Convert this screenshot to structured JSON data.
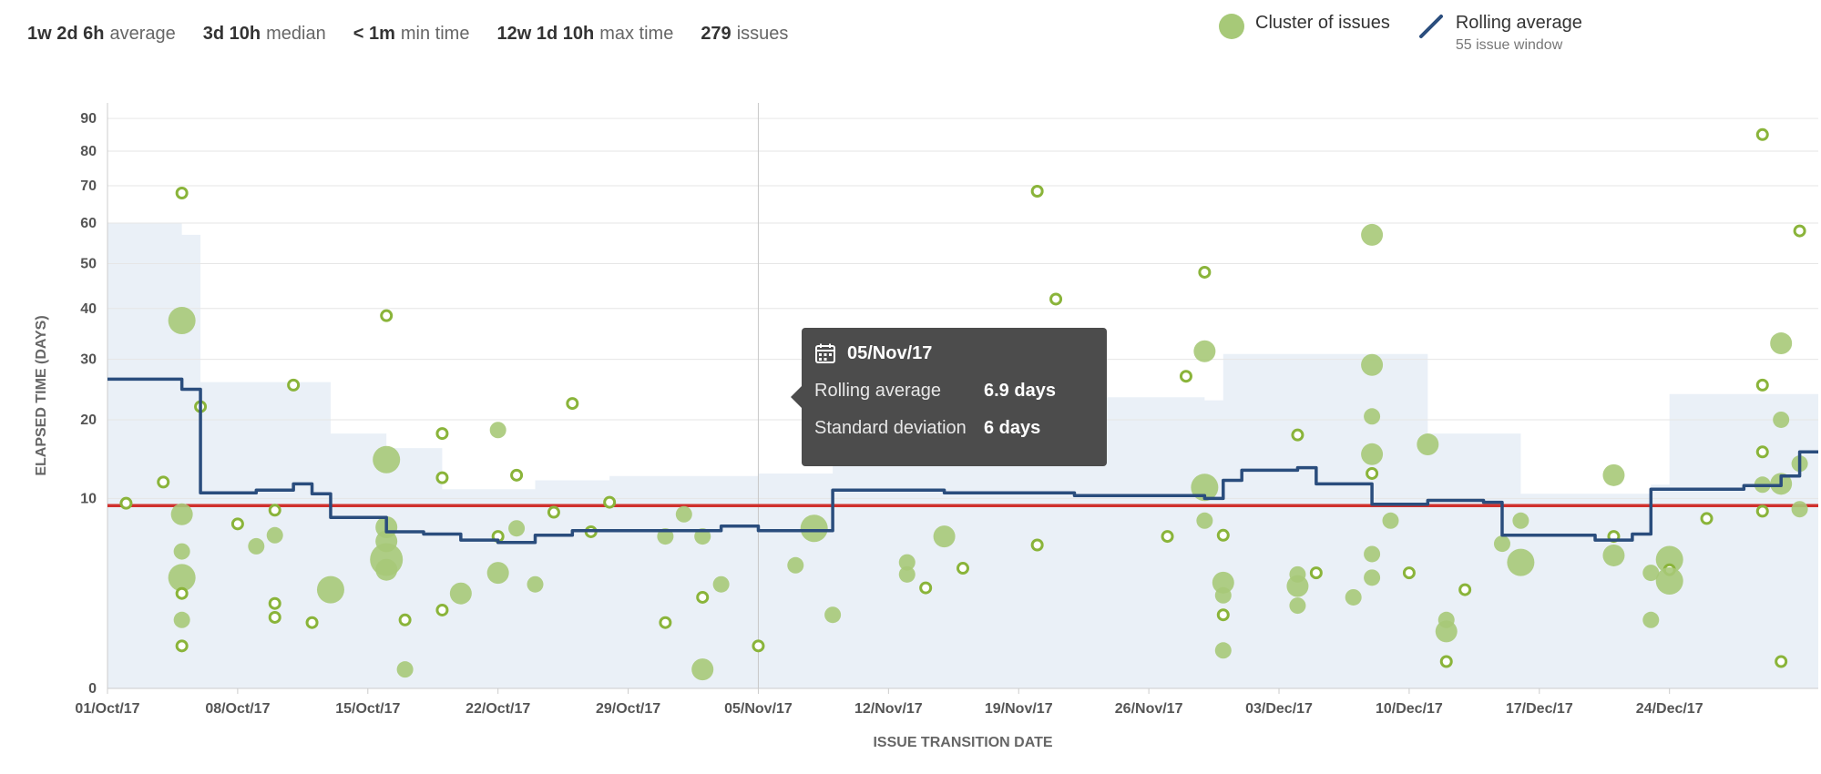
{
  "stats": [
    {
      "value": "1w 2d 6h",
      "label": "average"
    },
    {
      "value": "3d 10h",
      "label": "median"
    },
    {
      "value": "< 1m",
      "label": "min time"
    },
    {
      "value": "12w 1d 10h",
      "label": "max time"
    },
    {
      "value": "279",
      "label": "issues"
    }
  ],
  "legend": {
    "cluster_label": "Cluster of issues",
    "rolling_label": "Rolling average",
    "rolling_sub": "55 issue window"
  },
  "tooltip": {
    "date": "05/Nov/17",
    "rolling_label": "Rolling average",
    "rolling_value": "6.9 days",
    "stddev_label": "Standard deviation",
    "stddev_value": "6 days",
    "icon": "calendar-icon"
  },
  "colors": {
    "cluster": "#a7c978",
    "issue_ring": "#8ab43a",
    "rolling": "#2a4d7d",
    "average": "#d0312d",
    "band": "#eaf0f7"
  },
  "chart_data": {
    "type": "scatter",
    "xlabel": "ISSUE TRANSITION DATE",
    "ylabel": "ELAPSED TIME (DAYS)",
    "y_scale": "sqrt",
    "x_ticks": [
      "01/Oct/17",
      "08/Oct/17",
      "15/Oct/17",
      "22/Oct/17",
      "29/Oct/17",
      "05/Nov/17",
      "12/Nov/17",
      "19/Nov/17",
      "26/Nov/17",
      "03/Dec/17",
      "10/Dec/17",
      "17/Dec/17",
      "24/Dec/17"
    ],
    "y_ticks": [
      0,
      10,
      20,
      30,
      40,
      50,
      60,
      70,
      80,
      90
    ],
    "xlim": [
      "2017-10-01",
      "2017-12-31"
    ],
    "ylim": [
      0,
      95
    ],
    "grid": true,
    "average_days": 9.26,
    "hover_date": "2017-11-05",
    "issues": [
      {
        "date": "2017-10-02",
        "days": 9.5,
        "cluster": false
      },
      {
        "date": "2017-10-04",
        "days": 11.8,
        "cluster": false
      },
      {
        "date": "2017-10-05",
        "days": 37.5,
        "cluster": true,
        "size": "l"
      },
      {
        "date": "2017-10-05",
        "days": 68,
        "cluster": false
      },
      {
        "date": "2017-10-05",
        "days": 8.4,
        "cluster": true,
        "size": "m"
      },
      {
        "date": "2017-10-06",
        "days": 22,
        "cluster": false
      },
      {
        "date": "2017-10-05",
        "days": 5.2,
        "cluster": true,
        "size": "s"
      },
      {
        "date": "2017-10-05",
        "days": 3.4,
        "cluster": true,
        "size": "l"
      },
      {
        "date": "2017-10-05",
        "days": 2.5,
        "cluster": false
      },
      {
        "date": "2017-10-05",
        "days": 1.3,
        "cluster": true,
        "size": "s"
      },
      {
        "date": "2017-10-05",
        "days": 0.5,
        "cluster": false
      },
      {
        "date": "2017-10-08",
        "days": 7.5,
        "cluster": false
      },
      {
        "date": "2017-10-09",
        "days": 5.6,
        "cluster": true,
        "size": "s"
      },
      {
        "date": "2017-10-10",
        "days": 8.8,
        "cluster": false
      },
      {
        "date": "2017-10-10",
        "days": 6.5,
        "cluster": true,
        "size": "s"
      },
      {
        "date": "2017-10-10",
        "days": 2.0,
        "cluster": false
      },
      {
        "date": "2017-10-10",
        "days": 1.4,
        "cluster": false
      },
      {
        "date": "2017-10-11",
        "days": 25.5,
        "cluster": false
      },
      {
        "date": "2017-10-12",
        "days": 1.2,
        "cluster": false
      },
      {
        "date": "2017-10-13",
        "days": 2.7,
        "cluster": true,
        "size": "l"
      },
      {
        "date": "2017-10-16",
        "days": 38.5,
        "cluster": false
      },
      {
        "date": "2017-10-16",
        "days": 14.5,
        "cluster": true,
        "size": "l"
      },
      {
        "date": "2017-10-16",
        "days": 7.2,
        "cluster": true,
        "size": "m"
      },
      {
        "date": "2017-10-16",
        "days": 6.0,
        "cluster": true,
        "size": "m"
      },
      {
        "date": "2017-10-16",
        "days": 4.6,
        "cluster": true,
        "size": "xl"
      },
      {
        "date": "2017-10-16",
        "days": 3.9,
        "cluster": true,
        "size": "m"
      },
      {
        "date": "2017-10-17",
        "days": 1.3,
        "cluster": false
      },
      {
        "date": "2017-10-17",
        "days": 0.1,
        "cluster": true,
        "size": "s"
      },
      {
        "date": "2017-10-19",
        "days": 18,
        "cluster": false
      },
      {
        "date": "2017-10-19",
        "days": 12.3,
        "cluster": false
      },
      {
        "date": "2017-10-19",
        "days": 1.7,
        "cluster": false
      },
      {
        "date": "2017-10-20",
        "days": 2.5,
        "cluster": true,
        "size": "m"
      },
      {
        "date": "2017-10-22",
        "days": 18.5,
        "cluster": true,
        "size": "s"
      },
      {
        "date": "2017-10-22",
        "days": 3.7,
        "cluster": true,
        "size": "m"
      },
      {
        "date": "2017-10-22",
        "days": 6.4,
        "cluster": false
      },
      {
        "date": "2017-10-23",
        "days": 7.1,
        "cluster": true,
        "size": "s"
      },
      {
        "date": "2017-10-23",
        "days": 12.6,
        "cluster": false
      },
      {
        "date": "2017-10-24",
        "days": 3.0,
        "cluster": true,
        "size": "s"
      },
      {
        "date": "2017-10-25",
        "days": 8.6,
        "cluster": false
      },
      {
        "date": "2017-10-26",
        "days": 22.5,
        "cluster": false
      },
      {
        "date": "2017-10-27",
        "days": 6.8,
        "cluster": false
      },
      {
        "date": "2017-10-28",
        "days": 9.6,
        "cluster": false
      },
      {
        "date": "2017-10-31",
        "days": 6.4,
        "cluster": true,
        "size": "s"
      },
      {
        "date": "2017-10-31",
        "days": 1.2,
        "cluster": false
      },
      {
        "date": "2017-11-01",
        "days": 8.4,
        "cluster": true,
        "size": "s"
      },
      {
        "date": "2017-11-02",
        "days": 6.4,
        "cluster": true,
        "size": "s"
      },
      {
        "date": "2017-11-02",
        "days": 2.3,
        "cluster": false
      },
      {
        "date": "2017-11-02",
        "days": 0.1,
        "cluster": true,
        "size": "m"
      },
      {
        "date": "2017-11-03",
        "days": 3.0,
        "cluster": true,
        "size": "s"
      },
      {
        "date": "2017-11-05",
        "days": 0.5,
        "cluster": false
      },
      {
        "date": "2017-11-07",
        "days": 4.2,
        "cluster": true,
        "size": "s"
      },
      {
        "date": "2017-11-08",
        "days": 7.1,
        "cluster": true,
        "size": "l"
      },
      {
        "date": "2017-11-09",
        "days": 1.5,
        "cluster": true,
        "size": "s"
      },
      {
        "date": "2017-11-10",
        "days": 19.5,
        "cluster": true,
        "size": "s"
      },
      {
        "date": "2017-11-13",
        "days": 4.4,
        "cluster": true,
        "size": "s"
      },
      {
        "date": "2017-11-13",
        "days": 3.6,
        "cluster": true,
        "size": "s"
      },
      {
        "date": "2017-11-14",
        "days": 2.8,
        "cluster": false
      },
      {
        "date": "2017-11-15",
        "days": 6.4,
        "cluster": true,
        "size": "m"
      },
      {
        "date": "2017-11-16",
        "days": 4.0,
        "cluster": false
      },
      {
        "date": "2017-11-20",
        "days": 68.5,
        "cluster": false
      },
      {
        "date": "2017-11-20",
        "days": 5.7,
        "cluster": false
      },
      {
        "date": "2017-11-21",
        "days": 42,
        "cluster": false
      },
      {
        "date": "2017-11-27",
        "days": 6.4,
        "cluster": false
      },
      {
        "date": "2017-11-28",
        "days": 27,
        "cluster": false
      },
      {
        "date": "2017-11-29",
        "days": 31.5,
        "cluster": true,
        "size": "m"
      },
      {
        "date": "2017-11-29",
        "days": 11.2,
        "cluster": true,
        "size": "l"
      },
      {
        "date": "2017-11-29",
        "days": 48,
        "cluster": false
      },
      {
        "date": "2017-11-29",
        "days": 7.8,
        "cluster": true,
        "size": "s"
      },
      {
        "date": "2017-11-30",
        "days": 3.1,
        "cluster": true,
        "size": "m"
      },
      {
        "date": "2017-11-30",
        "days": 2.4,
        "cluster": true,
        "size": "s"
      },
      {
        "date": "2017-11-30",
        "days": 1.5,
        "cluster": false
      },
      {
        "date": "2017-11-30",
        "days": 0.4,
        "cluster": true,
        "size": "s"
      },
      {
        "date": "2017-11-30",
        "days": 6.5,
        "cluster": false
      },
      {
        "date": "2017-12-04",
        "days": 17.8,
        "cluster": false
      },
      {
        "date": "2017-12-04",
        "days": 3.6,
        "cluster": true,
        "size": "s"
      },
      {
        "date": "2017-12-04",
        "days": 2.9,
        "cluster": true,
        "size": "m"
      },
      {
        "date": "2017-12-04",
        "days": 1.9,
        "cluster": true,
        "size": "s"
      },
      {
        "date": "2017-12-05",
        "days": 3.7,
        "cluster": false
      },
      {
        "date": "2017-12-07",
        "days": 2.3,
        "cluster": true,
        "size": "s"
      },
      {
        "date": "2017-12-08",
        "days": 3.4,
        "cluster": true,
        "size": "s"
      },
      {
        "date": "2017-12-08",
        "days": 57,
        "cluster": true,
        "size": "m"
      },
      {
        "date": "2017-12-08",
        "days": 29,
        "cluster": true,
        "size": "m"
      },
      {
        "date": "2017-12-08",
        "days": 20.5,
        "cluster": true,
        "size": "s"
      },
      {
        "date": "2017-12-08",
        "days": 15.2,
        "cluster": true,
        "size": "m"
      },
      {
        "date": "2017-12-08",
        "days": 12.8,
        "cluster": false
      },
      {
        "date": "2017-12-08",
        "days": 5.0,
        "cluster": true,
        "size": "s"
      },
      {
        "date": "2017-12-09",
        "days": 7.8,
        "cluster": true,
        "size": "s"
      },
      {
        "date": "2017-12-10",
        "days": 3.7,
        "cluster": false
      },
      {
        "date": "2017-12-11",
        "days": 16.5,
        "cluster": true,
        "size": "m"
      },
      {
        "date": "2017-12-12",
        "days": 1.3,
        "cluster": true,
        "size": "s"
      },
      {
        "date": "2017-12-12",
        "days": 0.9,
        "cluster": true,
        "size": "m"
      },
      {
        "date": "2017-12-12",
        "days": 0.2,
        "cluster": false
      },
      {
        "date": "2017-12-13",
        "days": 2.7,
        "cluster": false
      },
      {
        "date": "2017-12-15",
        "days": 5.8,
        "cluster": true,
        "size": "s"
      },
      {
        "date": "2017-12-16",
        "days": 4.4,
        "cluster": true,
        "size": "l"
      },
      {
        "date": "2017-12-16",
        "days": 7.8,
        "cluster": true,
        "size": "s"
      },
      {
        "date": "2017-12-21",
        "days": 6.4,
        "cluster": false
      },
      {
        "date": "2017-12-21",
        "days": 4.9,
        "cluster": true,
        "size": "m"
      },
      {
        "date": "2017-12-21",
        "days": 12.6,
        "cluster": true,
        "size": "m"
      },
      {
        "date": "2017-12-23",
        "days": 3.7,
        "cluster": true,
        "size": "s"
      },
      {
        "date": "2017-12-23",
        "days": 1.3,
        "cluster": true,
        "size": "s"
      },
      {
        "date": "2017-12-24",
        "days": 4.6,
        "cluster": true,
        "size": "l"
      },
      {
        "date": "2017-12-24",
        "days": 3.9,
        "cluster": false
      },
      {
        "date": "2017-12-24",
        "days": 3.2,
        "cluster": true,
        "size": "l"
      },
      {
        "date": "2017-12-26",
        "days": 8.0,
        "cluster": false
      },
      {
        "date": "2017-12-29",
        "days": 15.5,
        "cluster": false
      },
      {
        "date": "2017-12-29",
        "days": 11.5,
        "cluster": true,
        "size": "s"
      },
      {
        "date": "2017-12-29",
        "days": 8.7,
        "cluster": false
      },
      {
        "date": "2017-12-29",
        "days": 25.5,
        "cluster": false
      },
      {
        "date": "2017-12-29",
        "days": 85,
        "cluster": false
      },
      {
        "date": "2017-12-30",
        "days": 20,
        "cluster": true,
        "size": "s"
      },
      {
        "date": "2017-12-30",
        "days": 11.6,
        "cluster": true,
        "size": "m"
      },
      {
        "date": "2017-12-30",
        "days": 0.2,
        "cluster": false
      },
      {
        "date": "2017-12-30",
        "days": 33,
        "cluster": true,
        "size": "m"
      },
      {
        "date": "2017-12-31",
        "days": 58,
        "cluster": false
      },
      {
        "date": "2017-12-31",
        "days": 14,
        "cluster": true,
        "size": "s"
      },
      {
        "date": "2017-12-31",
        "days": 8.9,
        "cluster": true,
        "size": "s"
      }
    ],
    "rolling_average": [
      {
        "date": "2017-10-01",
        "days": 26.5
      },
      {
        "date": "2017-10-05",
        "days": 25.8
      },
      {
        "date": "2017-10-05",
        "days": 24.8
      },
      {
        "date": "2017-10-06",
        "days": 17
      },
      {
        "date": "2017-10-06",
        "days": 10.6
      },
      {
        "date": "2017-10-09",
        "days": 10.9
      },
      {
        "date": "2017-10-11",
        "days": 11.6
      },
      {
        "date": "2017-10-12",
        "days": 10.5
      },
      {
        "date": "2017-10-13",
        "days": 8.1
      },
      {
        "date": "2017-10-16",
        "days": 7.4
      },
      {
        "date": "2017-10-16",
        "days": 6.8
      },
      {
        "date": "2017-10-18",
        "days": 6.6
      },
      {
        "date": "2017-10-20",
        "days": 6.1
      },
      {
        "date": "2017-10-22",
        "days": 5.9
      },
      {
        "date": "2017-10-24",
        "days": 6.5
      },
      {
        "date": "2017-10-26",
        "days": 6.9
      },
      {
        "date": "2017-11-01",
        "days": 6.9
      },
      {
        "date": "2017-11-03",
        "days": 7.3
      },
      {
        "date": "2017-11-05",
        "days": 6.9
      },
      {
        "date": "2017-11-09",
        "days": 10.9
      },
      {
        "date": "2017-11-15",
        "days": 10.6
      },
      {
        "date": "2017-11-22",
        "days": 10.3
      },
      {
        "date": "2017-11-29",
        "days": 10.0
      },
      {
        "date": "2017-11-30",
        "days": 12.0
      },
      {
        "date": "2017-12-01",
        "days": 13.2
      },
      {
        "date": "2017-12-04",
        "days": 13.5
      },
      {
        "date": "2017-12-05",
        "days": 11.6
      },
      {
        "date": "2017-12-08",
        "days": 9.4
      },
      {
        "date": "2017-12-11",
        "days": 9.8
      },
      {
        "date": "2017-12-14",
        "days": 9.6
      },
      {
        "date": "2017-12-15",
        "days": 6.5
      },
      {
        "date": "2017-12-20",
        "days": 6.1
      },
      {
        "date": "2017-12-22",
        "days": 6.6
      },
      {
        "date": "2017-12-23",
        "days": 8.0
      },
      {
        "date": "2017-12-23",
        "days": 11.0
      },
      {
        "date": "2017-12-28",
        "days": 11.4
      },
      {
        "date": "2017-12-30",
        "days": 12.5
      },
      {
        "date": "2017-12-31",
        "days": 15.5
      }
    ],
    "std_dev_band": [
      {
        "date": "2017-10-01",
        "upper": 60
      },
      {
        "date": "2017-10-05",
        "upper": 57
      },
      {
        "date": "2017-10-06",
        "upper": 26
      },
      {
        "date": "2017-10-11",
        "upper": 26
      },
      {
        "date": "2017-10-13",
        "upper": 18
      },
      {
        "date": "2017-10-16",
        "upper": 16
      },
      {
        "date": "2017-10-19",
        "upper": 11
      },
      {
        "date": "2017-10-24",
        "upper": 12
      },
      {
        "date": "2017-10-28",
        "upper": 12.5
      },
      {
        "date": "2017-11-05",
        "upper": 12.8
      },
      {
        "date": "2017-11-09",
        "upper": 23.5
      },
      {
        "date": "2017-11-29",
        "upper": 23
      },
      {
        "date": "2017-11-30",
        "upper": 31
      },
      {
        "date": "2017-12-08",
        "upper": 31
      },
      {
        "date": "2017-12-11",
        "upper": 18
      },
      {
        "date": "2017-12-16",
        "upper": 10.5
      },
      {
        "date": "2017-12-23",
        "upper": 11.5
      },
      {
        "date": "2017-12-24",
        "upper": 24
      },
      {
        "date": "2017-12-31",
        "upper": 24
      }
    ]
  }
}
